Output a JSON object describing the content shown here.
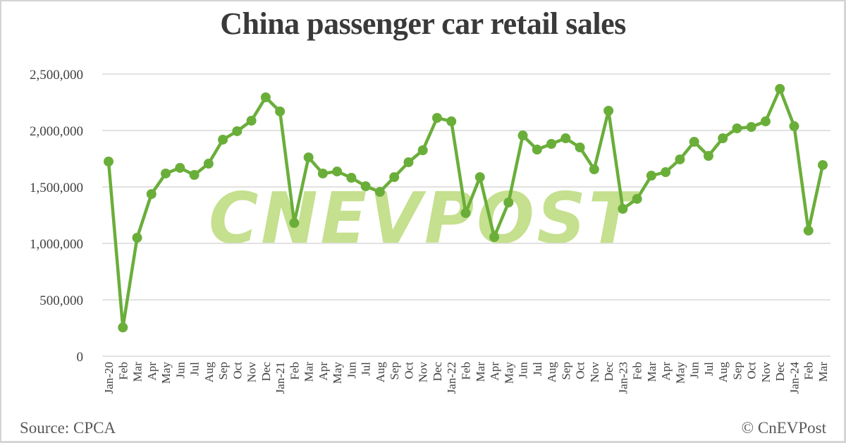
{
  "chart_data": {
    "type": "line",
    "title": "China passenger car retail sales",
    "xlabel": "",
    "ylabel": "",
    "ylim": [
      0,
      2500000
    ],
    "yticks": [
      0,
      500000,
      1000000,
      1500000,
      2000000,
      2500000
    ],
    "ytick_labels": [
      "0",
      "500,000",
      "1,000,000",
      "1,500,000",
      "2,000,000",
      "2,500,000"
    ],
    "grid": true,
    "legend": null,
    "line_color": "#6aae3a",
    "categories": [
      "Jan-20",
      "Feb",
      "Mar",
      "Apr",
      "May",
      "Jun",
      "Jul",
      "Aug",
      "Sep",
      "Oct",
      "Nov",
      "Dec",
      "Jan-21",
      "Feb",
      "Mar",
      "Apr",
      "May",
      "Jun",
      "Jul",
      "Aug",
      "Sep",
      "Oct",
      "Nov",
      "Dec",
      "Jan-22",
      "Feb",
      "Mar",
      "Apr",
      "May",
      "Jun",
      "Jul",
      "Aug",
      "Sep",
      "Oct",
      "Nov",
      "Dec",
      "Jan-23",
      "Feb",
      "Mar",
      "Apr",
      "May",
      "Jun",
      "Jul",
      "Aug",
      "Sep",
      "Oct",
      "Nov",
      "Dec",
      "Jan-24",
      "Feb",
      "Mar"
    ],
    "series": [
      {
        "name": "Retail sales",
        "values": [
          1725000,
          255000,
          1050000,
          1437000,
          1619000,
          1669000,
          1606000,
          1706000,
          1919000,
          1994000,
          2087000,
          2294000,
          2169000,
          1181000,
          1762000,
          1619000,
          1637000,
          1581000,
          1506000,
          1456000,
          1587000,
          1719000,
          1825000,
          2112000,
          2081000,
          1269000,
          1587000,
          1056000,
          1362000,
          1956000,
          1831000,
          1881000,
          1931000,
          1850000,
          1656000,
          2175000,
          1306000,
          1394000,
          1600000,
          1631000,
          1744000,
          1900000,
          1775000,
          1931000,
          2019000,
          2031000,
          2081000,
          2369000,
          2038000,
          1113000,
          1694000
        ]
      }
    ]
  },
  "header": {
    "title": "China passenger car retail sales"
  },
  "footer": {
    "source": "Source: CPCA",
    "copyright": "© CnEVPost"
  },
  "watermark": {
    "text": "CNEVPOST",
    "color": "#c5e08e"
  }
}
